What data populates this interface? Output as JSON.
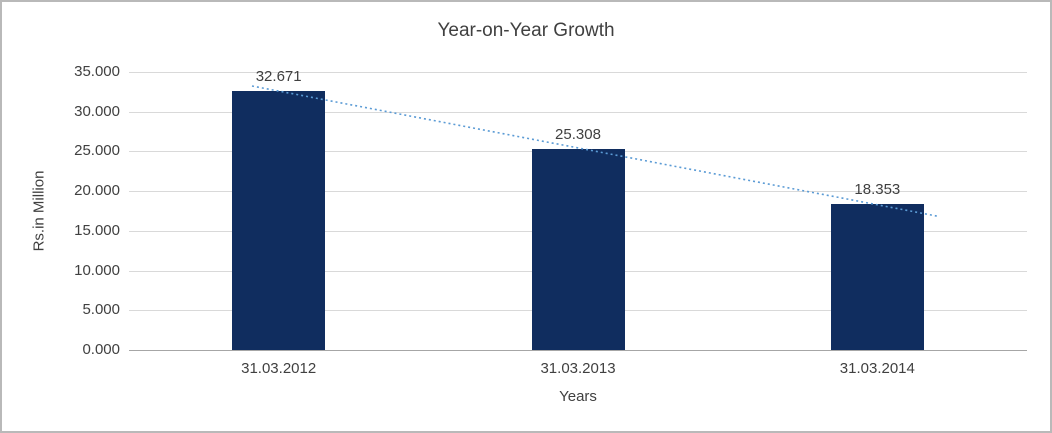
{
  "chart_data": {
    "type": "bar",
    "title": "Year-on-Year Growth",
    "xlabel": "Years",
    "ylabel": "Rs.in Million",
    "categories": [
      "31.03.2012",
      "31.03.2013",
      "31.03.2014"
    ],
    "values": [
      32.671,
      25.308,
      18.353
    ],
    "data_labels": [
      "32.671",
      "25.308",
      "18.353"
    ],
    "ylim": [
      0,
      35
    ],
    "ytick_values": [
      0,
      5,
      10,
      15,
      20,
      25,
      30,
      35
    ],
    "ytick_labels": [
      "0.000",
      "5.000",
      "10.000",
      "15.000",
      "20.000",
      "25.000",
      "30.000",
      "35.000"
    ],
    "grid": true,
    "legend": "none",
    "bar_color": "#102d5f",
    "trendline": {
      "type": "linear",
      "style": "dotted",
      "color": "#5b9bd5"
    },
    "colors": {
      "text": "#404040",
      "gridline": "#d9d9d9",
      "axis_line": "#a6a6a6",
      "frame_border": "#b9b9b9",
      "background": "#ffffff"
    }
  }
}
